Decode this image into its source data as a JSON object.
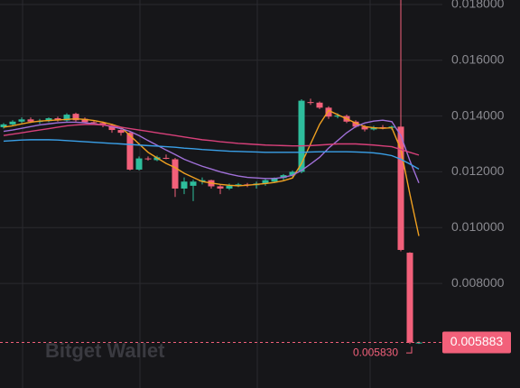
{
  "chart_data": {
    "type": "candlestick",
    "ylim": [
      0.00425,
      0.01816
    ],
    "yticks": [
      {
        "value": 0.018,
        "label": "0.018000"
      },
      {
        "value": 0.016,
        "label": "0.016000"
      },
      {
        "value": 0.014,
        "label": "0.014000"
      },
      {
        "value": 0.012,
        "label": "0.012000"
      },
      {
        "value": 0.01,
        "label": "0.010000"
      },
      {
        "value": 0.008,
        "label": "0.008000"
      }
    ],
    "grid": true,
    "up_color": "#2ebd9c",
    "down_color": "#f2607a",
    "ohlc": [
      [
        0.0136,
        0.01375,
        0.01355,
        0.0137
      ],
      [
        0.0137,
        0.01385,
        0.01365,
        0.0138
      ],
      [
        0.0138,
        0.01395,
        0.01375,
        0.01388
      ],
      [
        0.01388,
        0.01395,
        0.01375,
        0.0138
      ],
      [
        0.0138,
        0.0139,
        0.01372,
        0.01382
      ],
      [
        0.01382,
        0.01395,
        0.01378,
        0.01392
      ],
      [
        0.01392,
        0.01398,
        0.0138,
        0.01384
      ],
      [
        0.01384,
        0.0141,
        0.0138,
        0.01405
      ],
      [
        0.01408,
        0.01412,
        0.0138,
        0.01385
      ],
      [
        0.0139,
        0.01395,
        0.01375,
        0.01378
      ],
      [
        0.01378,
        0.01385,
        0.0137,
        0.01375
      ],
      [
        0.01375,
        0.0138,
        0.0136,
        0.01368
      ],
      [
        0.01368,
        0.01372,
        0.0134,
        0.0135
      ],
      [
        0.0135,
        0.01355,
        0.0133,
        0.0134
      ],
      [
        0.0134,
        0.01345,
        0.01205,
        0.01208
      ],
      [
        0.01208,
        0.01255,
        0.01205,
        0.01248
      ],
      [
        0.01248,
        0.01255,
        0.0124,
        0.01245
      ],
      [
        0.01242,
        0.01258,
        0.01238,
        0.01252
      ],
      [
        0.0125,
        0.01262,
        0.01245,
        0.01248
      ],
      [
        0.01245,
        0.0125,
        0.0111,
        0.0114
      ],
      [
        0.0114,
        0.0118,
        0.0112,
        0.01165
      ],
      [
        0.0115,
        0.01172,
        0.01095,
        0.01165
      ],
      [
        0.01165,
        0.0118,
        0.01155,
        0.0117
      ],
      [
        0.0117,
        0.01172,
        0.0114,
        0.01148
      ],
      [
        0.01148,
        0.01155,
        0.0112,
        0.0114
      ],
      [
        0.0114,
        0.01158,
        0.01135,
        0.0115
      ],
      [
        0.0115,
        0.0116,
        0.01145,
        0.01155
      ],
      [
        0.01155,
        0.0116,
        0.01145,
        0.01152
      ],
      [
        0.01152,
        0.01165,
        0.0114,
        0.01158
      ],
      [
        0.01158,
        0.01175,
        0.0115,
        0.0117
      ],
      [
        0.01165,
        0.0118,
        0.0116,
        0.01178
      ],
      [
        0.01178,
        0.01192,
        0.0117,
        0.01188
      ],
      [
        0.01188,
        0.01205,
        0.01182,
        0.012
      ],
      [
        0.012,
        0.0146,
        0.01195,
        0.01455
      ],
      [
        0.0145,
        0.01462,
        0.0144,
        0.01448
      ],
      [
        0.01448,
        0.01452,
        0.01425,
        0.0143
      ],
      [
        0.0143,
        0.01435,
        0.0139,
        0.01398
      ],
      [
        0.01398,
        0.0141,
        0.01392,
        0.01402
      ],
      [
        0.014,
        0.01405,
        0.01375,
        0.0138
      ],
      [
        0.0138,
        0.01385,
        0.01358,
        0.01362
      ],
      [
        0.01362,
        0.01368,
        0.01345,
        0.01352
      ],
      [
        0.01352,
        0.01365,
        0.01348,
        0.0136
      ],
      [
        0.0136,
        0.01368,
        0.01352,
        0.01358
      ],
      [
        0.01358,
        0.01366,
        0.0135,
        0.01362
      ],
      [
        0.01362,
        0.0182,
        0.00915,
        0.0092
      ],
      [
        0.0091,
        0.00912,
        0.00583,
        0.00588
      ],
      [
        0.00588,
        0.00592,
        0.00583,
        0.00588
      ]
    ],
    "series": [
      {
        "color": "#f0a020",
        "values": [
          0.0136,
          0.01365,
          0.01372,
          0.01378,
          0.01382,
          0.01384,
          0.01386,
          0.01388,
          0.0139,
          0.01388,
          0.01384,
          0.01378,
          0.0137,
          0.0136,
          0.0133,
          0.013,
          0.0127,
          0.0125,
          0.0123,
          0.01215,
          0.01195,
          0.0118,
          0.01165,
          0.0116,
          0.01155,
          0.01152,
          0.0115,
          0.01152,
          0.01155,
          0.01158,
          0.01162,
          0.01168,
          0.01178,
          0.0123,
          0.013,
          0.0137,
          0.0142,
          0.01405,
          0.0139,
          0.01375,
          0.01362,
          0.01358,
          0.01356,
          0.01358,
          0.0128,
          0.0112,
          0.0097
        ]
      },
      {
        "color": "#a070d8",
        "values": [
          0.01345,
          0.0135,
          0.01356,
          0.01362,
          0.01368,
          0.01372,
          0.01376,
          0.01378,
          0.01378,
          0.01376,
          0.01372,
          0.01368,
          0.01362,
          0.01355,
          0.01345,
          0.0133,
          0.01312,
          0.01295,
          0.01278,
          0.01262,
          0.01245,
          0.01232,
          0.0122,
          0.0121,
          0.012,
          0.01192,
          0.01185,
          0.0118,
          0.01178,
          0.01176,
          0.01176,
          0.0118,
          0.01188,
          0.01205,
          0.01228,
          0.01252,
          0.01285,
          0.01312,
          0.0134,
          0.01362,
          0.01375,
          0.01382,
          0.01385,
          0.0138,
          0.0133,
          0.0124,
          0.0116
        ]
      },
      {
        "color": "#d8407a",
        "values": [
          0.0133,
          0.01335,
          0.0134,
          0.01345,
          0.0135,
          0.01355,
          0.0136,
          0.01365,
          0.01368,
          0.0137,
          0.0137,
          0.01368,
          0.01365,
          0.0136,
          0.01355,
          0.0135,
          0.01345,
          0.0134,
          0.01335,
          0.0133,
          0.01325,
          0.0132,
          0.01315,
          0.01312,
          0.01308,
          0.01305,
          0.01302,
          0.013,
          0.01298,
          0.01296,
          0.01295,
          0.01294,
          0.01293,
          0.01293,
          0.01294,
          0.01296,
          0.01298,
          0.013,
          0.013,
          0.013,
          0.01298,
          0.01296,
          0.01293,
          0.0129,
          0.0128,
          0.0127,
          0.0126
        ]
      },
      {
        "color": "#3aa0e8",
        "values": [
          0.0131,
          0.01312,
          0.01314,
          0.01315,
          0.01315,
          0.01315,
          0.01314,
          0.01312,
          0.0131,
          0.01308,
          0.01306,
          0.01304,
          0.01302,
          0.013,
          0.01298,
          0.01296,
          0.01294,
          0.01292,
          0.0129,
          0.01288,
          0.01285,
          0.01283,
          0.0128,
          0.01278,
          0.01276,
          0.01274,
          0.01273,
          0.01272,
          0.01271,
          0.0127,
          0.0127,
          0.0127,
          0.0127,
          0.0127,
          0.01271,
          0.01272,
          0.01272,
          0.01272,
          0.01272,
          0.01271,
          0.0127,
          0.01268,
          0.01264,
          0.01258,
          0.01245,
          0.01228,
          0.0121
        ]
      }
    ],
    "last_price": {
      "value": 0.005883,
      "label": "0.005883"
    },
    "low_marker": {
      "value": 0.00583,
      "label": "0.005830"
    },
    "watermark": "Bitget Wallet"
  }
}
